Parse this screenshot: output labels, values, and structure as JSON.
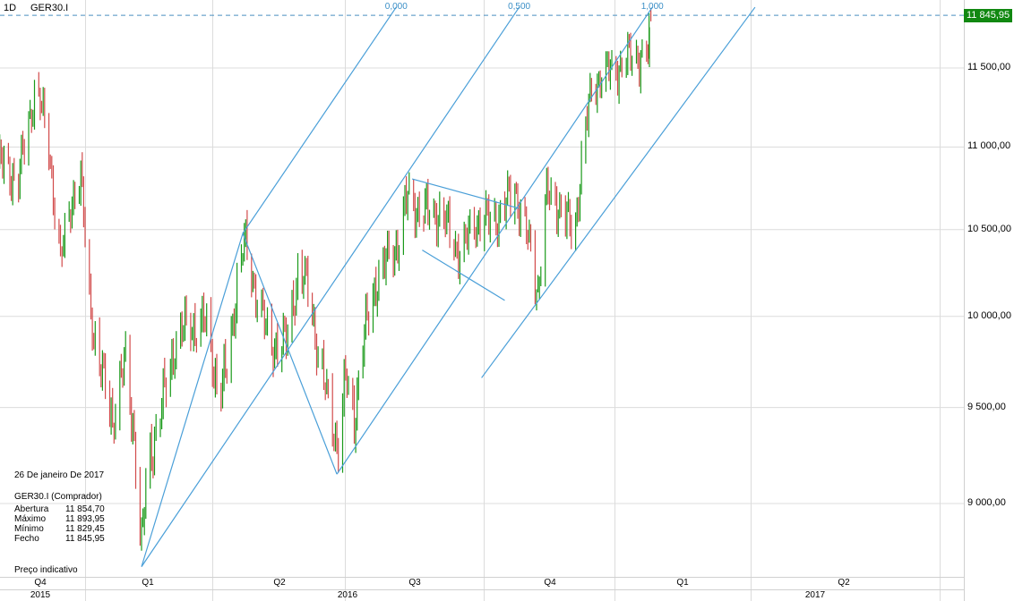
{
  "header": {
    "timeframe": "1D",
    "symbol": "GER30.I"
  },
  "info_panel": {
    "date": "26 De janeiro De 2017",
    "instrument": "GER30.I (Comprador)",
    "rows": [
      {
        "label": "Abertura",
        "value": "11 854,70"
      },
      {
        "label": "Máximo",
        "value": "11 893,95"
      },
      {
        "label": "Mínimo",
        "value": "11 829,45"
      },
      {
        "label": "Fecho",
        "value": "11 845,95"
      }
    ],
    "note": "Preço indicativo"
  },
  "price_axis": {
    "labels": [
      "11 500,00",
      "11 000,00",
      "10 500,00",
      "10 000,00",
      "9 500,00",
      "9 000,00"
    ],
    "last_price_label": "11 845,95"
  },
  "time_axis": {
    "quarters": [
      "Q4",
      "Q1",
      "Q2",
      "Q3",
      "Q4",
      "Q1",
      "Q2"
    ],
    "years": [
      "2015",
      "2016",
      "2017"
    ]
  },
  "colors": {
    "up": "#1a9a1a",
    "down": "#d24b4b",
    "drawing": "#4a9fd8",
    "last_price": "#118811",
    "grid": "#dcdcdc"
  },
  "chart_data": {
    "type": "ohlc",
    "scale": "log",
    "ylim": [
      8600,
      11950
    ],
    "yticks": [
      9000,
      9500,
      10000,
      10500,
      11000,
      11500
    ],
    "last_price": 11845.95,
    "last_bar": {
      "date": "2017-01-26",
      "open": 11854.7,
      "high": 11893.95,
      "low": 11829.45,
      "close": 11845.95
    },
    "close_path": [
      [
        "2015-11-03",
        10900
      ],
      [
        "2015-11-16",
        10800
      ],
      [
        "2015-11-28",
        11400
      ],
      [
        "2015-12-07",
        11000
      ],
      [
        "2015-12-15",
        10300
      ],
      [
        "2015-12-23",
        10700
      ],
      [
        "2015-12-29",
        10800
      ],
      [
        "2016-01-04",
        10100
      ],
      [
        "2016-01-10",
        9750
      ],
      [
        "2016-01-20",
        9450
      ],
      [
        "2016-01-29",
        9750
      ],
      [
        "2016-02-04",
        9350
      ],
      [
        "2016-02-09",
        8750
      ],
      [
        "2016-02-13",
        9200
      ],
      [
        "2016-02-23",
        9500
      ],
      [
        "2016-03-03",
        9850
      ],
      [
        "2016-03-12",
        9950
      ],
      [
        "2016-03-25",
        9950
      ],
      [
        "2016-04-03",
        9550
      ],
      [
        "2016-04-09",
        9750
      ],
      [
        "2016-04-15",
        10200
      ],
      [
        "2016-04-20",
        10420
      ],
      [
        "2016-04-28",
        10150
      ],
      [
        "2016-05-07",
        9850
      ],
      [
        "2016-05-19",
        9850
      ],
      [
        "2016-05-27",
        10250
      ],
      [
        "2016-06-04",
        10150
      ],
      [
        "2016-06-10",
        9800
      ],
      [
        "2016-06-16",
        9550
      ],
      [
        "2016-06-24",
        9300
      ],
      [
        "2016-06-29",
        9650
      ],
      [
        "2016-07-05",
        9450
      ],
      [
        "2016-07-11",
        9850
      ],
      [
        "2016-07-20",
        10200
      ],
      [
        "2016-07-30",
        10350
      ],
      [
        "2016-08-05",
        10450
      ],
      [
        "2016-08-11",
        10700
      ],
      [
        "2016-08-20",
        10600
      ],
      [
        "2016-09-02",
        10600
      ],
      [
        "2016-09-11",
        10450
      ],
      [
        "2016-09-17",
        10350
      ],
      [
        "2016-09-26",
        10550
      ],
      [
        "2016-10-06",
        10550
      ],
      [
        "2016-10-15",
        10600
      ],
      [
        "2016-10-24",
        10750
      ],
      [
        "2016-11-03",
        10400
      ],
      [
        "2016-11-09",
        10150
      ],
      [
        "2016-11-15",
        10700
      ],
      [
        "2016-11-24",
        10650
      ],
      [
        "2016-12-04",
        10450
      ],
      [
        "2016-12-10",
        11000
      ],
      [
        "2016-12-16",
        11350
      ],
      [
        "2016-12-22",
        11450
      ],
      [
        "2016-12-31",
        11480
      ],
      [
        "2017-01-10",
        11560
      ],
      [
        "2017-01-19",
        11580
      ],
      [
        "2017-01-25",
        11600
      ]
    ],
    "drawings": [
      {
        "kind": "zigzag",
        "points": [
          [
            "2016-02-09",
            8686
          ],
          [
            "2016-04-19",
            10478
          ],
          [
            "2016-06-23",
            9150
          ]
        ]
      },
      {
        "kind": "line",
        "label": "0,000",
        "points": [
          [
            "2016-04-19",
            10478
          ],
          [
            "2016-08-03",
            11900
          ]
        ]
      },
      {
        "kind": "line",
        "label": "0,500",
        "points": [
          [
            "2016-02-09",
            8686
          ],
          [
            "2016-10-27",
            11900
          ]
        ]
      },
      {
        "kind": "line",
        "label": "1,000",
        "points": [
          [
            "2016-06-23",
            9150
          ],
          [
            "2017-01-27",
            11900
          ]
        ]
      },
      {
        "kind": "line",
        "points": [
          [
            "2016-10-01",
            9660
          ],
          [
            "2017-04-08",
            11900
          ]
        ]
      },
      {
        "kind": "line",
        "points": [
          [
            "2016-08-14",
            10804
          ],
          [
            "2016-10-27",
            10626
          ]
        ]
      },
      {
        "kind": "line",
        "points": [
          [
            "2016-08-21",
            10380
          ],
          [
            "2016-10-17",
            10090
          ]
        ]
      }
    ]
  }
}
